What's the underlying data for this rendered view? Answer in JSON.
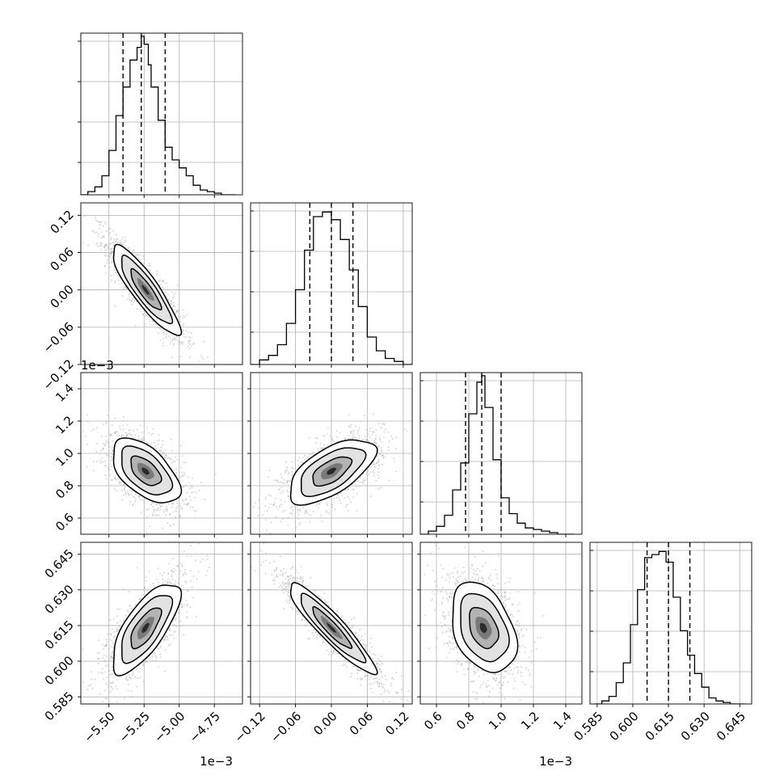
{
  "chart_data": {
    "type": "corner",
    "colors": {
      "axes": "#000000",
      "grid": "#b0b0b0",
      "points": "#bdbdbd",
      "contour": "#000000"
    },
    "grid": true,
    "panels": [
      {
        "row": 0,
        "col": 0,
        "type": "histogram",
        "xlim": [
          -5.7,
          -4.55
        ],
        "ylim": [
          0,
          1.02
        ],
        "bin_edges": [
          -5.7,
          -5.65,
          -5.6,
          -5.55,
          -5.5,
          -5.45,
          -5.4,
          -5.35,
          -5.3,
          -5.27,
          -5.25,
          -5.22,
          -5.2,
          -5.15,
          -5.1,
          -5.05,
          -5.0,
          -4.95,
          -4.9,
          -4.85,
          -4.8,
          -4.75,
          -4.7,
          -4.65,
          -4.6
        ],
        "counts": [
          0.0,
          0.02,
          0.05,
          0.12,
          0.28,
          0.5,
          0.68,
          0.85,
          0.93,
          1.0,
          0.95,
          0.82,
          0.68,
          0.47,
          0.3,
          0.22,
          0.17,
          0.12,
          0.06,
          0.03,
          0.02,
          0.01,
          0.0,
          0.0
        ],
        "quantiles": [
          -5.4,
          -5.27,
          -5.1
        ]
      },
      {
        "row": 1,
        "col": 0,
        "type": "2d",
        "xlim": [
          -5.7,
          -4.55
        ],
        "ylim": [
          -0.12,
          0.14
        ],
        "center": [
          -5.24,
          0.0
        ],
        "sigma": [
          0.12,
          0.036
        ],
        "rho": -0.88,
        "count": 1600,
        "contour_levels": [
          0.9,
          1.5,
          2.0
        ]
      },
      {
        "row": 1,
        "col": 1,
        "type": "histogram",
        "xlim": [
          -0.135,
          0.135
        ],
        "ylim": [
          0,
          1.06
        ],
        "bin_edges": [
          -0.135,
          -0.12,
          -0.105,
          -0.09,
          -0.075,
          -0.06,
          -0.045,
          -0.03,
          -0.015,
          0.0,
          0.015,
          0.03,
          0.045,
          0.06,
          0.075,
          0.09,
          0.105,
          0.12,
          0.135
        ],
        "counts": [
          0.0,
          0.03,
          0.06,
          0.13,
          0.27,
          0.49,
          0.75,
          0.97,
          1.0,
          0.95,
          0.82,
          0.62,
          0.38,
          0.18,
          0.09,
          0.04,
          0.02,
          0.0
        ],
        "quantiles": [
          -0.036,
          0.0,
          0.036
        ]
      },
      {
        "row": 2,
        "col": 0,
        "type": "2d",
        "xlim": [
          -5.7,
          -4.55
        ],
        "ylim": [
          0.5,
          1.5
        ],
        "center": [
          -5.24,
          0.89
        ],
        "sigma": [
          0.12,
          0.1
        ],
        "rho": -0.55,
        "count": 1600,
        "contour_levels": [
          0.9,
          1.5,
          2.0
        ]
      },
      {
        "row": 2,
        "col": 1,
        "type": "2d",
        "xlim": [
          -0.135,
          0.135
        ],
        "ylim": [
          0.5,
          1.5
        ],
        "center": [
          0.0,
          0.89
        ],
        "sigma": [
          0.036,
          0.1
        ],
        "rho": 0.62,
        "count": 1600,
        "contour_levels": [
          0.9,
          1.5,
          2.0
        ]
      },
      {
        "row": 2,
        "col": 2,
        "type": "histogram",
        "xlim": [
          0.5,
          1.5
        ],
        "ylim": [
          0,
          1.02
        ],
        "bin_edges": [
          0.5,
          0.55,
          0.6,
          0.65,
          0.7,
          0.75,
          0.8,
          0.85,
          0.88,
          0.9,
          0.95,
          1.0,
          1.05,
          1.1,
          1.15,
          1.2,
          1.25,
          1.3,
          1.35,
          1.4,
          1.45
        ],
        "counts": [
          0.0,
          0.02,
          0.05,
          0.12,
          0.28,
          0.45,
          0.76,
          0.96,
          1.0,
          0.8,
          0.47,
          0.23,
          0.13,
          0.07,
          0.04,
          0.03,
          0.02,
          0.01,
          0.0,
          0.0
        ],
        "quantiles": [
          0.78,
          0.88,
          1.0
        ]
      },
      {
        "row": 3,
        "col": 0,
        "type": "2d",
        "xlim": [
          -5.7,
          -4.55
        ],
        "ylim": [
          0.582,
          0.65
        ],
        "center": [
          -5.24,
          0.614
        ],
        "sigma": [
          0.12,
          0.0095
        ],
        "rho": 0.72,
        "count": 1600,
        "contour_levels": [
          0.9,
          1.5,
          2.0
        ]
      },
      {
        "row": 3,
        "col": 1,
        "type": "2d",
        "xlim": [
          -0.135,
          0.135
        ],
        "ylim": [
          0.582,
          0.65
        ],
        "center": [
          0.0,
          0.614
        ],
        "sigma": [
          0.036,
          0.0095
        ],
        "rho": -0.92,
        "count": 1600,
        "contour_levels": [
          0.9,
          1.5,
          2.0
        ]
      },
      {
        "row": 3,
        "col": 2,
        "type": "2d",
        "xlim": [
          0.5,
          1.5
        ],
        "ylim": [
          0.582,
          0.65
        ],
        "center": [
          0.89,
          0.614
        ],
        "sigma": [
          0.1,
          0.0095
        ],
        "rho": -0.35,
        "count": 1600,
        "contour_levels": [
          0.9,
          1.5,
          2.0
        ]
      },
      {
        "row": 3,
        "col": 3,
        "type": "histogram",
        "xlim": [
          0.582,
          0.65
        ],
        "ylim": [
          0,
          1.06
        ],
        "bin_edges": [
          0.584,
          0.587,
          0.59,
          0.593,
          0.596,
          0.599,
          0.602,
          0.605,
          0.608,
          0.611,
          0.614,
          0.617,
          0.62,
          0.623,
          0.626,
          0.629,
          0.632,
          0.635,
          0.638,
          0.641,
          0.644,
          0.647
        ],
        "counts": [
          0.0,
          0.02,
          0.05,
          0.14,
          0.27,
          0.52,
          0.75,
          0.96,
          0.98,
          1.0,
          0.93,
          0.7,
          0.48,
          0.32,
          0.2,
          0.11,
          0.04,
          0.02,
          0.01,
          0.0,
          0.0
        ],
        "quantiles": [
          0.606,
          0.615,
          0.624
        ]
      }
    ],
    "axes": {
      "x": [
        {
          "ticks": [
            -5.5,
            -5.25,
            -5.0,
            -4.75
          ],
          "labels": [
            "−5.50",
            "−5.25",
            "−5.00",
            "−4.75"
          ],
          "multiplier": "1e−3"
        },
        {
          "ticks": [
            -0.12,
            -0.06,
            0.0,
            0.06,
            0.12
          ],
          "labels": [
            "−0.12",
            "−0.06",
            "0.00",
            "0.06",
            "0.12"
          ],
          "multiplier": ""
        },
        {
          "ticks": [
            0.6,
            0.8,
            1.0,
            1.2,
            1.4
          ],
          "labels": [
            "0.6",
            "0.8",
            "1.0",
            "1.2",
            "1.4"
          ],
          "multiplier": "1e−3"
        },
        {
          "ticks": [
            0.585,
            0.6,
            0.615,
            0.63,
            0.645
          ],
          "labels": [
            "0.585",
            "0.600",
            "0.615",
            "0.630",
            "0.645"
          ],
          "multiplier": ""
        }
      ],
      "y": [
        null,
        {
          "ticks": [
            -0.12,
            -0.06,
            0.0,
            0.06,
            0.12
          ],
          "labels": [
            "−0.12",
            "−0.06",
            "0.00",
            "0.06",
            "0.12"
          ],
          "multiplier": ""
        },
        {
          "ticks": [
            0.6,
            0.8,
            1.0,
            1.2,
            1.4
          ],
          "labels": [
            "0.6",
            "0.8",
            "1.0",
            "1.2",
            "1.4"
          ],
          "multiplier": "1e−3"
        },
        {
          "ticks": [
            0.585,
            0.6,
            0.615,
            0.63,
            0.645
          ],
          "labels": [
            "0.585",
            "0.600",
            "0.615",
            "0.630",
            "0.645"
          ],
          "multiplier": ""
        }
      ]
    }
  }
}
